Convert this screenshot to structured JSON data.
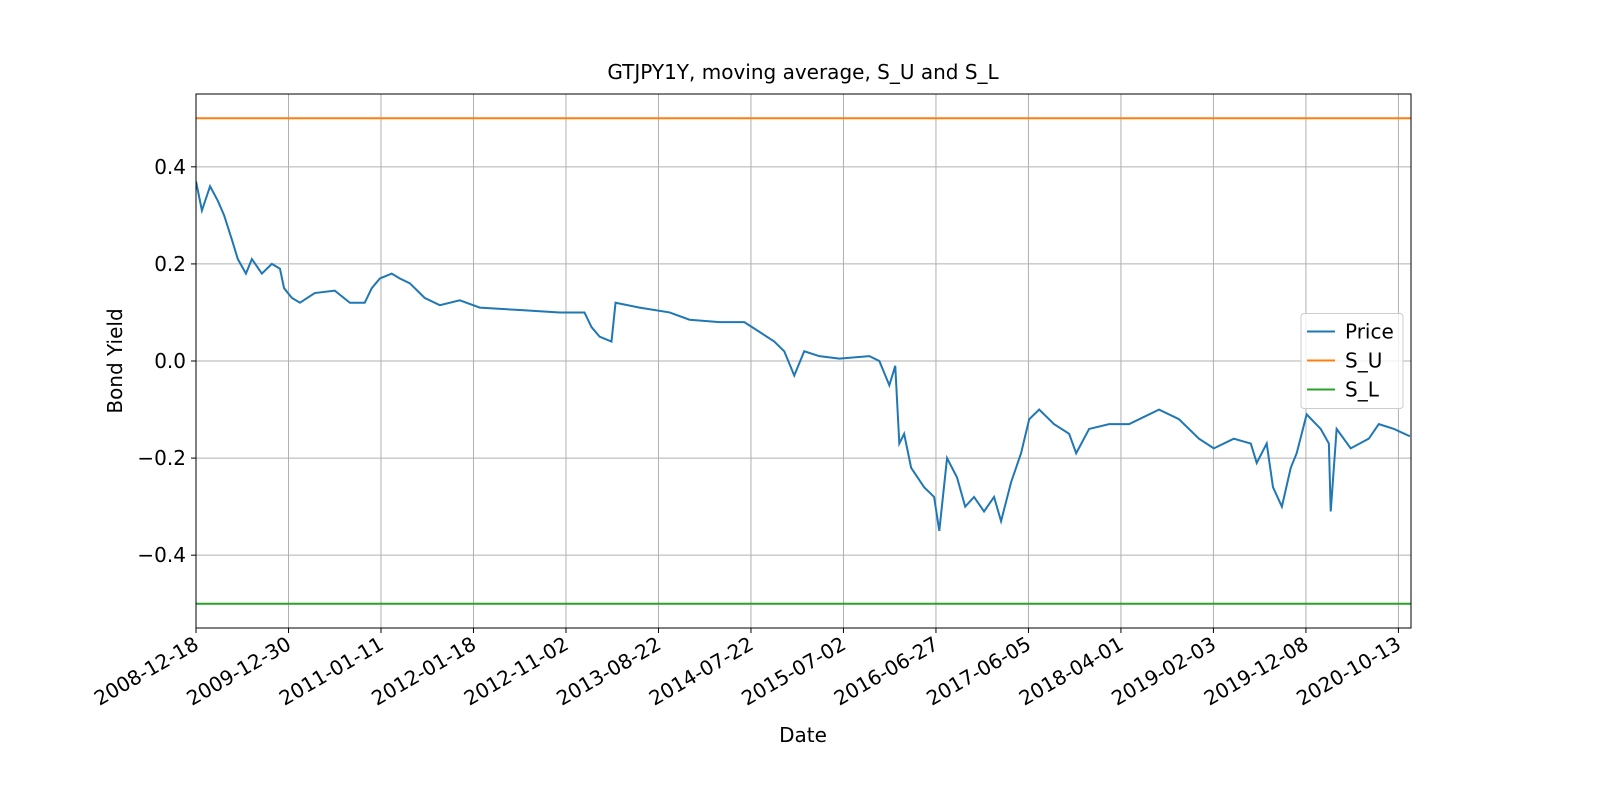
{
  "chart_data": {
    "type": "line",
    "title": "GTJPY1Y, moving average, S_U and S_L",
    "xlabel": "Date",
    "ylabel": "Bond Yield",
    "grid": true,
    "legend": "center right",
    "xlim": [
      0,
      3284
    ],
    "ylim": [
      -0.55,
      0.55
    ],
    "xticks": [
      {
        "value": 0,
        "label": "2008-12-18"
      },
      {
        "value": 250,
        "label": "2009-12-30"
      },
      {
        "value": 500,
        "label": "2011-01-11"
      },
      {
        "value": 750,
        "label": "2012-01-18"
      },
      {
        "value": 1000,
        "label": "2012-11-02"
      },
      {
        "value": 1250,
        "label": "2013-08-22"
      },
      {
        "value": 1500,
        "label": "2014-07-22"
      },
      {
        "value": 1750,
        "label": "2015-07-02"
      },
      {
        "value": 2000,
        "label": "2016-06-27"
      },
      {
        "value": 2250,
        "label": "2017-06-05"
      },
      {
        "value": 2500,
        "label": "2018-04-01"
      },
      {
        "value": 2750,
        "label": "2019-02-03"
      },
      {
        "value": 3000,
        "label": "2019-12-08"
      },
      {
        "value": 3250,
        "label": "2020-10-13"
      }
    ],
    "yticks": [
      {
        "value": -0.4,
        "label": "−0.4"
      },
      {
        "value": -0.2,
        "label": "−0.2"
      },
      {
        "value": 0,
        "label": "0.0"
      },
      0.2,
      0.4
    ],
    "series": [
      {
        "name": "Price",
        "color": "#1f77b4",
        "x": [
          0,
          16,
          38,
          59,
          76,
          97,
          113,
          135,
          151,
          178,
          205,
          227,
          238,
          259,
          281,
          321,
          375,
          416,
          456,
          475,
          497,
          529,
          551,
          578,
          618,
          659,
          713,
          767,
          875,
          983,
          1050,
          1069,
          1091,
          1123,
          1134,
          1199,
          1280,
          1334,
          1415,
          1482,
          1523,
          1563,
          1590,
          1617,
          1644,
          1685,
          1739,
          1820,
          1847,
          1874,
          1890,
          1901,
          1914,
          1933,
          1968,
          1995,
          2009,
          2030,
          2057,
          2079,
          2103,
          2130,
          2157,
          2176,
          2203,
          2230,
          2252,
          2279,
          2319,
          2360,
          2379,
          2414,
          2468,
          2522,
          2603,
          2657,
          2711,
          2751,
          2805,
          2851,
          2867,
          2894,
          2911,
          2935,
          2959,
          2975,
          3002,
          3040,
          3062,
          3067,
          3083,
          3121,
          3170,
          3197,
          3238,
          3281
        ],
        "values": [
          0.37,
          0.31,
          0.36,
          0.33,
          0.3,
          0.25,
          0.21,
          0.18,
          0.21,
          0.18,
          0.2,
          0.19,
          0.15,
          0.13,
          0.12,
          0.14,
          0.145,
          0.12,
          0.12,
          0.15,
          0.17,
          0.18,
          0.17,
          0.16,
          0.13,
          0.115,
          0.125,
          0.11,
          0.105,
          0.1,
          0.1,
          0.07,
          0.05,
          0.04,
          0.12,
          0.11,
          0.1,
          0.085,
          0.08,
          0.08,
          0.06,
          0.04,
          0.02,
          -0.03,
          0.02,
          0.01,
          0.005,
          0.01,
          0.0,
          -0.05,
          -0.01,
          -0.17,
          -0.15,
          -0.22,
          -0.26,
          -0.28,
          -0.35,
          -0.2,
          -0.24,
          -0.3,
          -0.28,
          -0.31,
          -0.28,
          -0.33,
          -0.25,
          -0.19,
          -0.12,
          -0.1,
          -0.13,
          -0.15,
          -0.19,
          -0.14,
          -0.13,
          -0.13,
          -0.1,
          -0.12,
          -0.16,
          -0.18,
          -0.16,
          -0.17,
          -0.21,
          -0.17,
          -0.26,
          -0.3,
          -0.22,
          -0.19,
          -0.11,
          -0.14,
          -0.17,
          -0.31,
          -0.14,
          -0.18,
          -0.16,
          -0.13,
          -0.14,
          -0.155
        ]
      },
      {
        "name": "S_U",
        "color": "#ff7f0e",
        "x": [
          0,
          3284
        ],
        "values": [
          0.5,
          0.5
        ]
      },
      {
        "name": "S_L",
        "color": "#2ca02c",
        "x": [
          0,
          3284
        ],
        "values": [
          -0.5,
          -0.5
        ]
      }
    ]
  }
}
